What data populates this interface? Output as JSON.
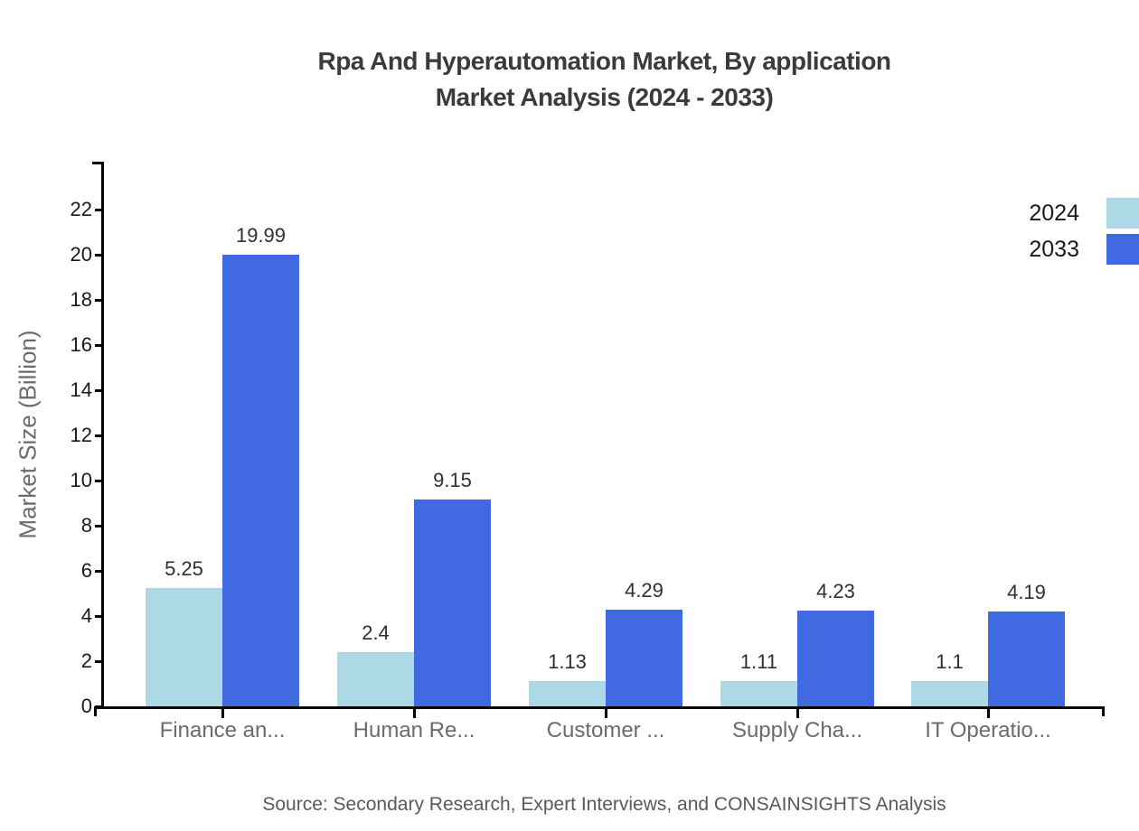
{
  "title": {
    "line1": "Rpa And Hyperautomation Market, By application",
    "line2": "Market Analysis (2024 - 2033)"
  },
  "legend": {
    "items": [
      {
        "label": "2024",
        "color": "#ADD8E6"
      },
      {
        "label": "2033",
        "color": "#4169E1"
      }
    ]
  },
  "y_axis_title": "Market Size (Billion)",
  "source": "Source: Secondary Research, Expert Interviews, and CONSAINSIGHTS Analysis",
  "colors": {
    "axis": "#000000",
    "title_text": "#3b3b3b",
    "tick_text": "#1a1a1a",
    "category_text": "#6b6b6b",
    "value_text": "#2f2f2f",
    "source_text": "#595959"
  },
  "chart_data": {
    "type": "bar",
    "title": "Rpa And Hyperautomation Market, By application Market Analysis (2024 - 2033)",
    "categories": [
      "Finance an...",
      "Human Re...",
      "Customer ...",
      "Supply Cha...",
      "IT Operatio..."
    ],
    "series": [
      {
        "name": "2024",
        "color": "#ADD8E6",
        "values": [
          5.25,
          2.4,
          1.13,
          1.11,
          1.1
        ]
      },
      {
        "name": "2033",
        "color": "#4169E1",
        "values": [
          19.99,
          9.15,
          4.29,
          4.23,
          4.19
        ]
      }
    ],
    "xlabel": "",
    "ylabel": "Market Size (Billion)",
    "ylim": [
      0,
      24
    ],
    "yticks": [
      0,
      2,
      4,
      6,
      8,
      10,
      12,
      14,
      16,
      18,
      20,
      22
    ],
    "grid": false,
    "legend_position": "top-right",
    "value_labels_shown": true
  }
}
